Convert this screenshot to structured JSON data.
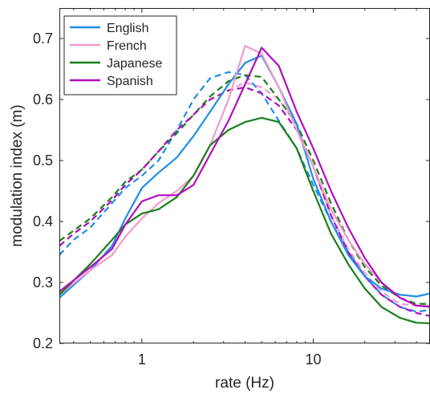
{
  "chart_data": {
    "type": "line",
    "title": "",
    "xlabel": "rate (Hz)",
    "ylabel": "modulation index (m)",
    "xscale": "log",
    "xlim": [
      0.33,
      48
    ],
    "ylim": [
      0.2,
      0.75
    ],
    "xticks": [
      1,
      10
    ],
    "xtick_labels": [
      "1",
      "10"
    ],
    "yticks": [
      0.2,
      0.3,
      0.4,
      0.5,
      0.6,
      0.7
    ],
    "ytick_labels": [
      "0.2",
      "0.3",
      "0.4",
      "0.5",
      "0.6",
      "0.7"
    ],
    "grid": false,
    "legend_position": "top-left",
    "series": [
      {
        "name": "English",
        "color": "#1f8ee6",
        "style": "solid",
        "x": [
          0.33,
          0.5,
          0.67,
          0.8,
          1.0,
          1.25,
          1.6,
          2.0,
          2.5,
          3.2,
          4.0,
          5.0,
          6.3,
          8.0,
          10.0,
          12.7,
          16.0,
          20.0,
          25.0,
          32.0,
          40.0,
          48.0
        ],
        "y": [
          0.275,
          0.32,
          0.36,
          0.405,
          0.455,
          0.48,
          0.505,
          0.54,
          0.58,
          0.625,
          0.66,
          0.672,
          0.62,
          0.56,
          0.47,
          0.4,
          0.345,
          0.31,
          0.29,
          0.28,
          0.277,
          0.282
        ]
      },
      {
        "name": "French",
        "color": "#f29bcc",
        "style": "solid",
        "x": [
          0.33,
          0.5,
          0.67,
          0.8,
          1.0,
          1.25,
          1.6,
          2.0,
          2.5,
          3.2,
          4.0,
          5.0,
          6.3,
          8.0,
          10.0,
          12.7,
          16.0,
          20.0,
          25.0,
          32.0,
          40.0,
          48.0
        ],
        "y": [
          0.28,
          0.32,
          0.345,
          0.375,
          0.405,
          0.43,
          0.45,
          0.475,
          0.525,
          0.6,
          0.688,
          0.675,
          0.62,
          0.55,
          0.49,
          0.42,
          0.37,
          0.33,
          0.3,
          0.275,
          0.262,
          0.26
        ]
      },
      {
        "name": "Japanese",
        "color": "#1a7f1a",
        "style": "solid",
        "x": [
          0.33,
          0.5,
          0.67,
          0.8,
          1.0,
          1.25,
          1.6,
          2.0,
          2.5,
          3.2,
          4.0,
          5.0,
          6.3,
          8.0,
          10.0,
          12.7,
          16.0,
          20.0,
          25.0,
          32.0,
          40.0,
          48.0
        ],
        "y": [
          0.28,
          0.33,
          0.37,
          0.395,
          0.413,
          0.42,
          0.44,
          0.475,
          0.525,
          0.55,
          0.563,
          0.57,
          0.563,
          0.52,
          0.45,
          0.38,
          0.33,
          0.29,
          0.26,
          0.242,
          0.234,
          0.233
        ]
      },
      {
        "name": "Spanish",
        "color": "#b00fbf",
        "style": "solid",
        "x": [
          0.33,
          0.5,
          0.67,
          0.8,
          1.0,
          1.25,
          1.6,
          2.0,
          2.5,
          3.2,
          4.0,
          5.0,
          6.3,
          8.0,
          10.0,
          12.7,
          16.0,
          20.0,
          25.0,
          32.0,
          40.0,
          48.0
        ],
        "y": [
          0.285,
          0.325,
          0.355,
          0.395,
          0.433,
          0.443,
          0.443,
          0.46,
          0.51,
          0.565,
          0.625,
          0.685,
          0.655,
          0.58,
          0.52,
          0.45,
          0.39,
          0.34,
          0.3,
          0.275,
          0.262,
          0.26
        ]
      },
      {
        "name": "",
        "color": "#1f8ee6",
        "style": "dashed",
        "x": [
          0.33,
          0.4,
          0.5,
          0.67,
          0.8,
          1.0,
          1.25,
          1.6,
          2.0,
          2.5,
          3.2,
          4.0,
          5.0,
          6.3,
          8.0,
          10.0,
          12.7,
          16.0,
          20.0,
          25.0,
          32.0,
          40.0,
          48.0
        ],
        "y": [
          0.345,
          0.37,
          0.39,
          0.43,
          0.455,
          0.475,
          0.5,
          0.55,
          0.6,
          0.635,
          0.645,
          0.64,
          0.61,
          0.565,
          0.52,
          0.46,
          0.4,
          0.35,
          0.31,
          0.28,
          0.26,
          0.252,
          0.255
        ]
      },
      {
        "name": "",
        "color": "#f29bcc",
        "style": "dashed",
        "x": [
          0.33,
          0.4,
          0.5,
          0.67,
          0.8,
          1.0,
          1.25,
          1.6,
          2.0,
          2.5,
          3.2,
          4.0,
          5.0,
          6.3,
          8.0,
          10.0,
          12.7,
          16.0,
          20.0,
          25.0,
          32.0,
          40.0,
          48.0
        ],
        "y": [
          0.36,
          0.38,
          0.4,
          0.435,
          0.46,
          0.485,
          0.515,
          0.55,
          0.575,
          0.6,
          0.615,
          0.628,
          0.62,
          0.6,
          0.56,
          0.49,
          0.41,
          0.355,
          0.315,
          0.285,
          0.265,
          0.262,
          0.262
        ]
      },
      {
        "name": "",
        "color": "#1a7f1a",
        "style": "dashed",
        "x": [
          0.33,
          0.4,
          0.5,
          0.67,
          0.8,
          1.0,
          1.25,
          1.6,
          2.0,
          2.5,
          3.2,
          4.0,
          5.0,
          6.3,
          8.0,
          10.0,
          12.7,
          16.0,
          20.0,
          25.0,
          32.0,
          40.0,
          48.0
        ],
        "y": [
          0.368,
          0.385,
          0.405,
          0.44,
          0.465,
          0.485,
          0.515,
          0.545,
          0.575,
          0.605,
          0.63,
          0.64,
          0.637,
          0.6,
          0.56,
          0.5,
          0.43,
          0.37,
          0.325,
          0.295,
          0.275,
          0.265,
          0.265
        ]
      },
      {
        "name": "",
        "color": "#b00fbf",
        "style": "dashed",
        "x": [
          0.33,
          0.4,
          0.5,
          0.67,
          0.8,
          1.0,
          1.25,
          1.6,
          2.0,
          2.5,
          3.2,
          4.0,
          5.0,
          6.3,
          8.0,
          10.0,
          12.7,
          16.0,
          20.0,
          25.0,
          32.0,
          40.0,
          48.0
        ],
        "y": [
          0.36,
          0.38,
          0.4,
          0.435,
          0.46,
          0.485,
          0.515,
          0.55,
          0.575,
          0.6,
          0.615,
          0.62,
          0.61,
          0.59,
          0.55,
          0.49,
          0.41,
          0.35,
          0.31,
          0.28,
          0.26,
          0.25,
          0.245
        ]
      }
    ]
  }
}
